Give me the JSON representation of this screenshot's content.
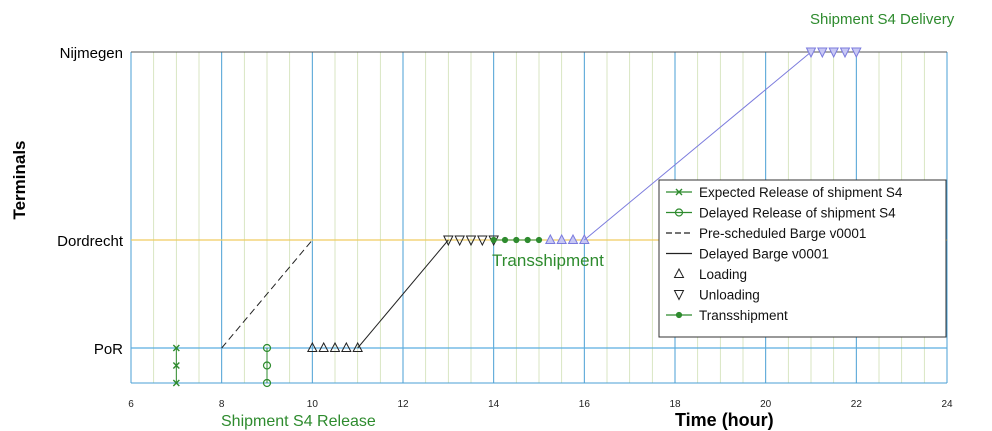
{
  "chart_data": {
    "type": "line",
    "xlabel": "Time (hour)",
    "ylabel": "Terminals",
    "xlim": [
      6,
      24
    ],
    "x_ticks": [
      6,
      8,
      10,
      12,
      14,
      16,
      18,
      20,
      22,
      24
    ],
    "y_categories": [
      "PoR",
      "Dordrecht",
      "Nijmegen"
    ],
    "y_values": {
      "PoR": 0,
      "Dordrecht": 1,
      "Nijmegen": 2
    },
    "ylim": [
      -0.19,
      2
    ],
    "grid": true,
    "legend_position": "center-right",
    "colors": {
      "green": "#2e8b2e",
      "black": "#222222",
      "purple": "#7b7bdd",
      "por_line": "#5aaee0",
      "dordrecht_line": "#f0cc60",
      "nijmegen_line": "#555555",
      "minor_grid": "#cfe0b4",
      "major_grid": "#4a9fd4"
    },
    "series": [
      {
        "name": "Expected Release of shipment S4",
        "style": "solid-x",
        "color": "green",
        "points": [
          [
            7,
            -0.19
          ],
          [
            7,
            -0.095
          ],
          [
            7,
            0
          ]
        ]
      },
      {
        "name": "Delayed Release of shipment S4",
        "style": "solid-circle",
        "color": "green",
        "points": [
          [
            9,
            -0.19
          ],
          [
            9,
            -0.095
          ],
          [
            9,
            0
          ]
        ]
      },
      {
        "name": "Pre-scheduled Barge v0001",
        "style": "dashed",
        "color": "black",
        "points": [
          [
            8,
            0
          ],
          [
            10,
            1
          ]
        ]
      },
      {
        "name": "Delayed Barge v0001",
        "style": "solid",
        "color": "black",
        "points": [
          [
            11,
            0
          ],
          [
            13,
            1
          ]
        ]
      },
      {
        "name": "Loading",
        "style": "triangle-up",
        "color": "black",
        "points": [
          [
            10,
            0
          ],
          [
            10.25,
            0
          ],
          [
            10.5,
            0
          ],
          [
            10.75,
            0
          ],
          [
            11,
            0
          ]
        ]
      },
      {
        "name": "Unloading",
        "style": "triangle-down",
        "color": "black",
        "points": [
          [
            13,
            1
          ],
          [
            13.25,
            1
          ],
          [
            13.5,
            1
          ],
          [
            13.75,
            1
          ],
          [
            14,
            1
          ]
        ]
      },
      {
        "name": "Transshipment",
        "style": "solid-dot",
        "color": "green",
        "points": [
          [
            14,
            1
          ],
          [
            14.25,
            1
          ],
          [
            14.5,
            1
          ],
          [
            14.75,
            1
          ],
          [
            15,
            1
          ]
        ]
      },
      {
        "name": "",
        "style": "triangle-up",
        "color": "purple",
        "points": [
          [
            15.25,
            1
          ],
          [
            15.5,
            1
          ],
          [
            15.75,
            1
          ],
          [
            16,
            1
          ]
        ]
      },
      {
        "name": "",
        "style": "solid",
        "color": "purple",
        "points": [
          [
            16,
            1
          ],
          [
            21,
            2
          ]
        ]
      },
      {
        "name": "",
        "style": "triangle-down",
        "color": "purple",
        "points": [
          [
            21,
            2
          ],
          [
            21.25,
            2
          ],
          [
            21.5,
            2
          ],
          [
            21.75,
            2
          ],
          [
            22,
            2
          ]
        ]
      }
    ],
    "annotations": [
      {
        "text": "Shipment S4 Delivery",
        "x": 22.4,
        "y": 2.2
      },
      {
        "text": "Transshipment",
        "x": 14.2,
        "y": 0.88
      },
      {
        "text": "Shipment S4 Release",
        "x": 8.4,
        "y": -0.38
      }
    ]
  }
}
